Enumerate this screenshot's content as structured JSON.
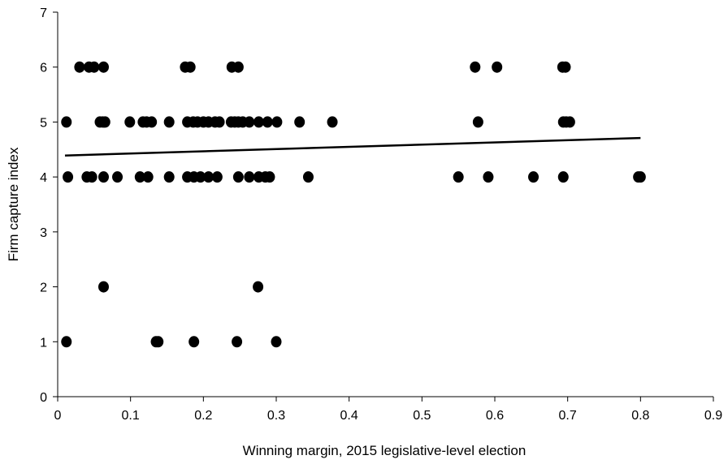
{
  "chart_data": {
    "type": "scatter",
    "title": "",
    "xlabel": "Winning margin, 2015 legislative-level election",
    "ylabel": "Firm capture index",
    "xlim": [
      0,
      0.9
    ],
    "ylim": [
      0,
      7
    ],
    "x_ticks": [
      "0",
      "0.1",
      "0.2",
      "0.3",
      "0.4",
      "0.5",
      "0.6",
      "0.7",
      "0.8",
      "0.9"
    ],
    "y_ticks": [
      "0",
      "1",
      "2",
      "3",
      "4",
      "5",
      "6",
      "7"
    ],
    "grid": false,
    "legend": "none",
    "marker_color": "#000000",
    "points": [
      [
        0.012,
        1
      ],
      [
        0.135,
        1
      ],
      [
        0.138,
        1
      ],
      [
        0.187,
        1
      ],
      [
        0.246,
        1
      ],
      [
        0.3,
        1
      ],
      [
        0.063,
        2
      ],
      [
        0.275,
        2
      ],
      [
        0.014,
        4
      ],
      [
        0.04,
        4
      ],
      [
        0.047,
        4
      ],
      [
        0.063,
        4
      ],
      [
        0.082,
        4
      ],
      [
        0.113,
        4
      ],
      [
        0.124,
        4
      ],
      [
        0.153,
        4
      ],
      [
        0.178,
        4
      ],
      [
        0.187,
        4
      ],
      [
        0.196,
        4
      ],
      [
        0.207,
        4
      ],
      [
        0.219,
        4
      ],
      [
        0.248,
        4
      ],
      [
        0.263,
        4
      ],
      [
        0.276,
        4
      ],
      [
        0.285,
        4
      ],
      [
        0.291,
        4
      ],
      [
        0.344,
        4
      ],
      [
        0.55,
        4
      ],
      [
        0.591,
        4
      ],
      [
        0.653,
        4
      ],
      [
        0.694,
        4
      ],
      [
        0.797,
        4
      ],
      [
        0.8,
        4
      ],
      [
        0.012,
        5
      ],
      [
        0.058,
        5
      ],
      [
        0.062,
        5
      ],
      [
        0.065,
        5
      ],
      [
        0.099,
        5
      ],
      [
        0.117,
        5
      ],
      [
        0.122,
        5
      ],
      [
        0.129,
        5
      ],
      [
        0.153,
        5
      ],
      [
        0.178,
        5
      ],
      [
        0.186,
        5
      ],
      [
        0.192,
        5
      ],
      [
        0.2,
        5
      ],
      [
        0.207,
        5
      ],
      [
        0.216,
        5
      ],
      [
        0.222,
        5
      ],
      [
        0.238,
        5
      ],
      [
        0.243,
        5
      ],
      [
        0.248,
        5
      ],
      [
        0.254,
        5
      ],
      [
        0.263,
        5
      ],
      [
        0.276,
        5
      ],
      [
        0.288,
        5
      ],
      [
        0.301,
        5
      ],
      [
        0.332,
        5
      ],
      [
        0.377,
        5
      ],
      [
        0.577,
        5
      ],
      [
        0.694,
        5
      ],
      [
        0.698,
        5
      ],
      [
        0.703,
        5
      ],
      [
        0.03,
        6
      ],
      [
        0.043,
        6
      ],
      [
        0.05,
        6
      ],
      [
        0.063,
        6
      ],
      [
        0.175,
        6
      ],
      [
        0.182,
        6
      ],
      [
        0.239,
        6
      ],
      [
        0.248,
        6
      ],
      [
        0.573,
        6
      ],
      [
        0.603,
        6
      ],
      [
        0.693,
        6
      ],
      [
        0.697,
        6
      ]
    ],
    "trendline": {
      "type": "linear",
      "x": [
        0.01,
        0.8
      ],
      "y": [
        4.39,
        4.71
      ]
    }
  }
}
